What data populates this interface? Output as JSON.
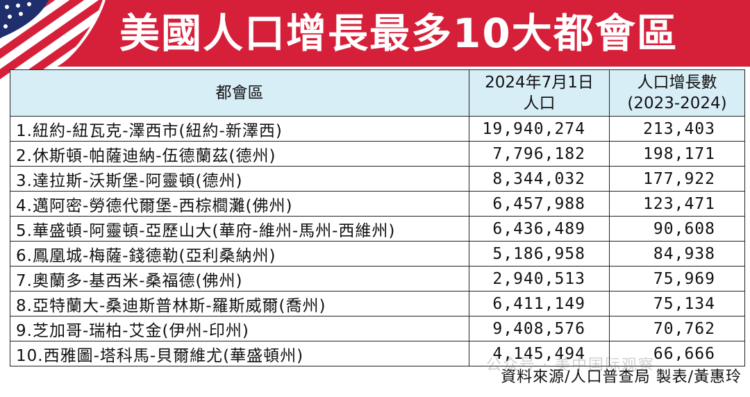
{
  "title": "美國人口增長最多10大都會區",
  "colors": {
    "title_bg": "#d6203a",
    "header_bg": "#d8eef7",
    "title_text": "#ffffff"
  },
  "table": {
    "headers": {
      "metro": "都會區",
      "population_line1": "2024年7月1日",
      "population_line2": "人口",
      "growth_line1": "人口增長數",
      "growth_line2": "(2023-2024)"
    },
    "rows": [
      {
        "name": "1.紐約-紐瓦克-澤西市(紐約-新澤西)",
        "population": "19,940,274",
        "growth": "213,403"
      },
      {
        "name": "2.休斯頓-帕薩迪納-伍德蘭茲(德州)",
        "population": "7,796,182",
        "growth": "198,171"
      },
      {
        "name": "3.達拉斯-沃斯堡-阿靈頓(德州)",
        "population": "8,344,032",
        "growth": "177,922"
      },
      {
        "name": "4.邁阿密-勞德代爾堡-西棕櫚灘(佛州)",
        "population": "6,457,988",
        "growth": "123,471"
      },
      {
        "name": "5.華盛頓-阿靈頓-亞歷山大(華府-維州-馬州-西維州)",
        "population": "6,436,489",
        "growth": "90,608"
      },
      {
        "name": "6.鳳凰城-梅薩-錢德勒(亞利桑納州)",
        "population": "5,186,958",
        "growth": "84,938"
      },
      {
        "name": "7.奧蘭多-基西米-桑福德(佛州)",
        "population": "2,940,513",
        "growth": "75,969"
      },
      {
        "name": "8.亞特蘭大-桑迪斯普林斯-羅斯威爾(喬州)",
        "population": "6,411,149",
        "growth": "75,134"
      },
      {
        "name": "9.芝加哥-瑞柏-艾金(伊州-印州)",
        "population": "9,408,576",
        "growth": "70,762"
      },
      {
        "name": "10.西雅圖-塔科馬-貝爾維尤(華盛頓州)",
        "population": "4,145,494",
        "growth": "66,666"
      }
    ]
  },
  "source": "資料來源/人口普查局 製表/黃惠玲",
  "watermark": "公众号 · 美中国际观察",
  "icons": {
    "flag": "us-flag-icon"
  },
  "chart_data": {
    "type": "table",
    "title": "美國人口增長最多10大都會區",
    "columns": [
      "都會區",
      "2024年7月1日 人口",
      "人口增長數 (2023-2024)"
    ],
    "rows": [
      [
        "1.紐約-紐瓦克-澤西市(紐約-新澤西)",
        19940274,
        213403
      ],
      [
        "2.休斯頓-帕薩迪納-伍德蘭茲(德州)",
        7796182,
        198171
      ],
      [
        "3.達拉斯-沃斯堡-阿靈頓(德州)",
        8344032,
        177922
      ],
      [
        "4.邁阿密-勞德代爾堡-西棕櫚灘(佛州)",
        6457988,
        123471
      ],
      [
        "5.華盛頓-阿靈頓-亞歷山大(華府-維州-馬州-西維州)",
        6436489,
        90608
      ],
      [
        "6.鳳凰城-梅薩-錢德勒(亞利桑納州)",
        5186958,
        84938
      ],
      [
        "7.奧蘭多-基西米-桑福德(佛州)",
        2940513,
        75969
      ],
      [
        "8.亞特蘭大-桑迪斯普林斯-羅斯威爾(喬州)",
        6411149,
        75134
      ],
      [
        "9.芝加哥-瑞柏-艾金(伊州-印州)",
        9408576,
        70762
      ],
      [
        "10.西雅圖-塔科馬-貝爾維尤(華盛頓州)",
        4145494,
        66666
      ]
    ]
  }
}
